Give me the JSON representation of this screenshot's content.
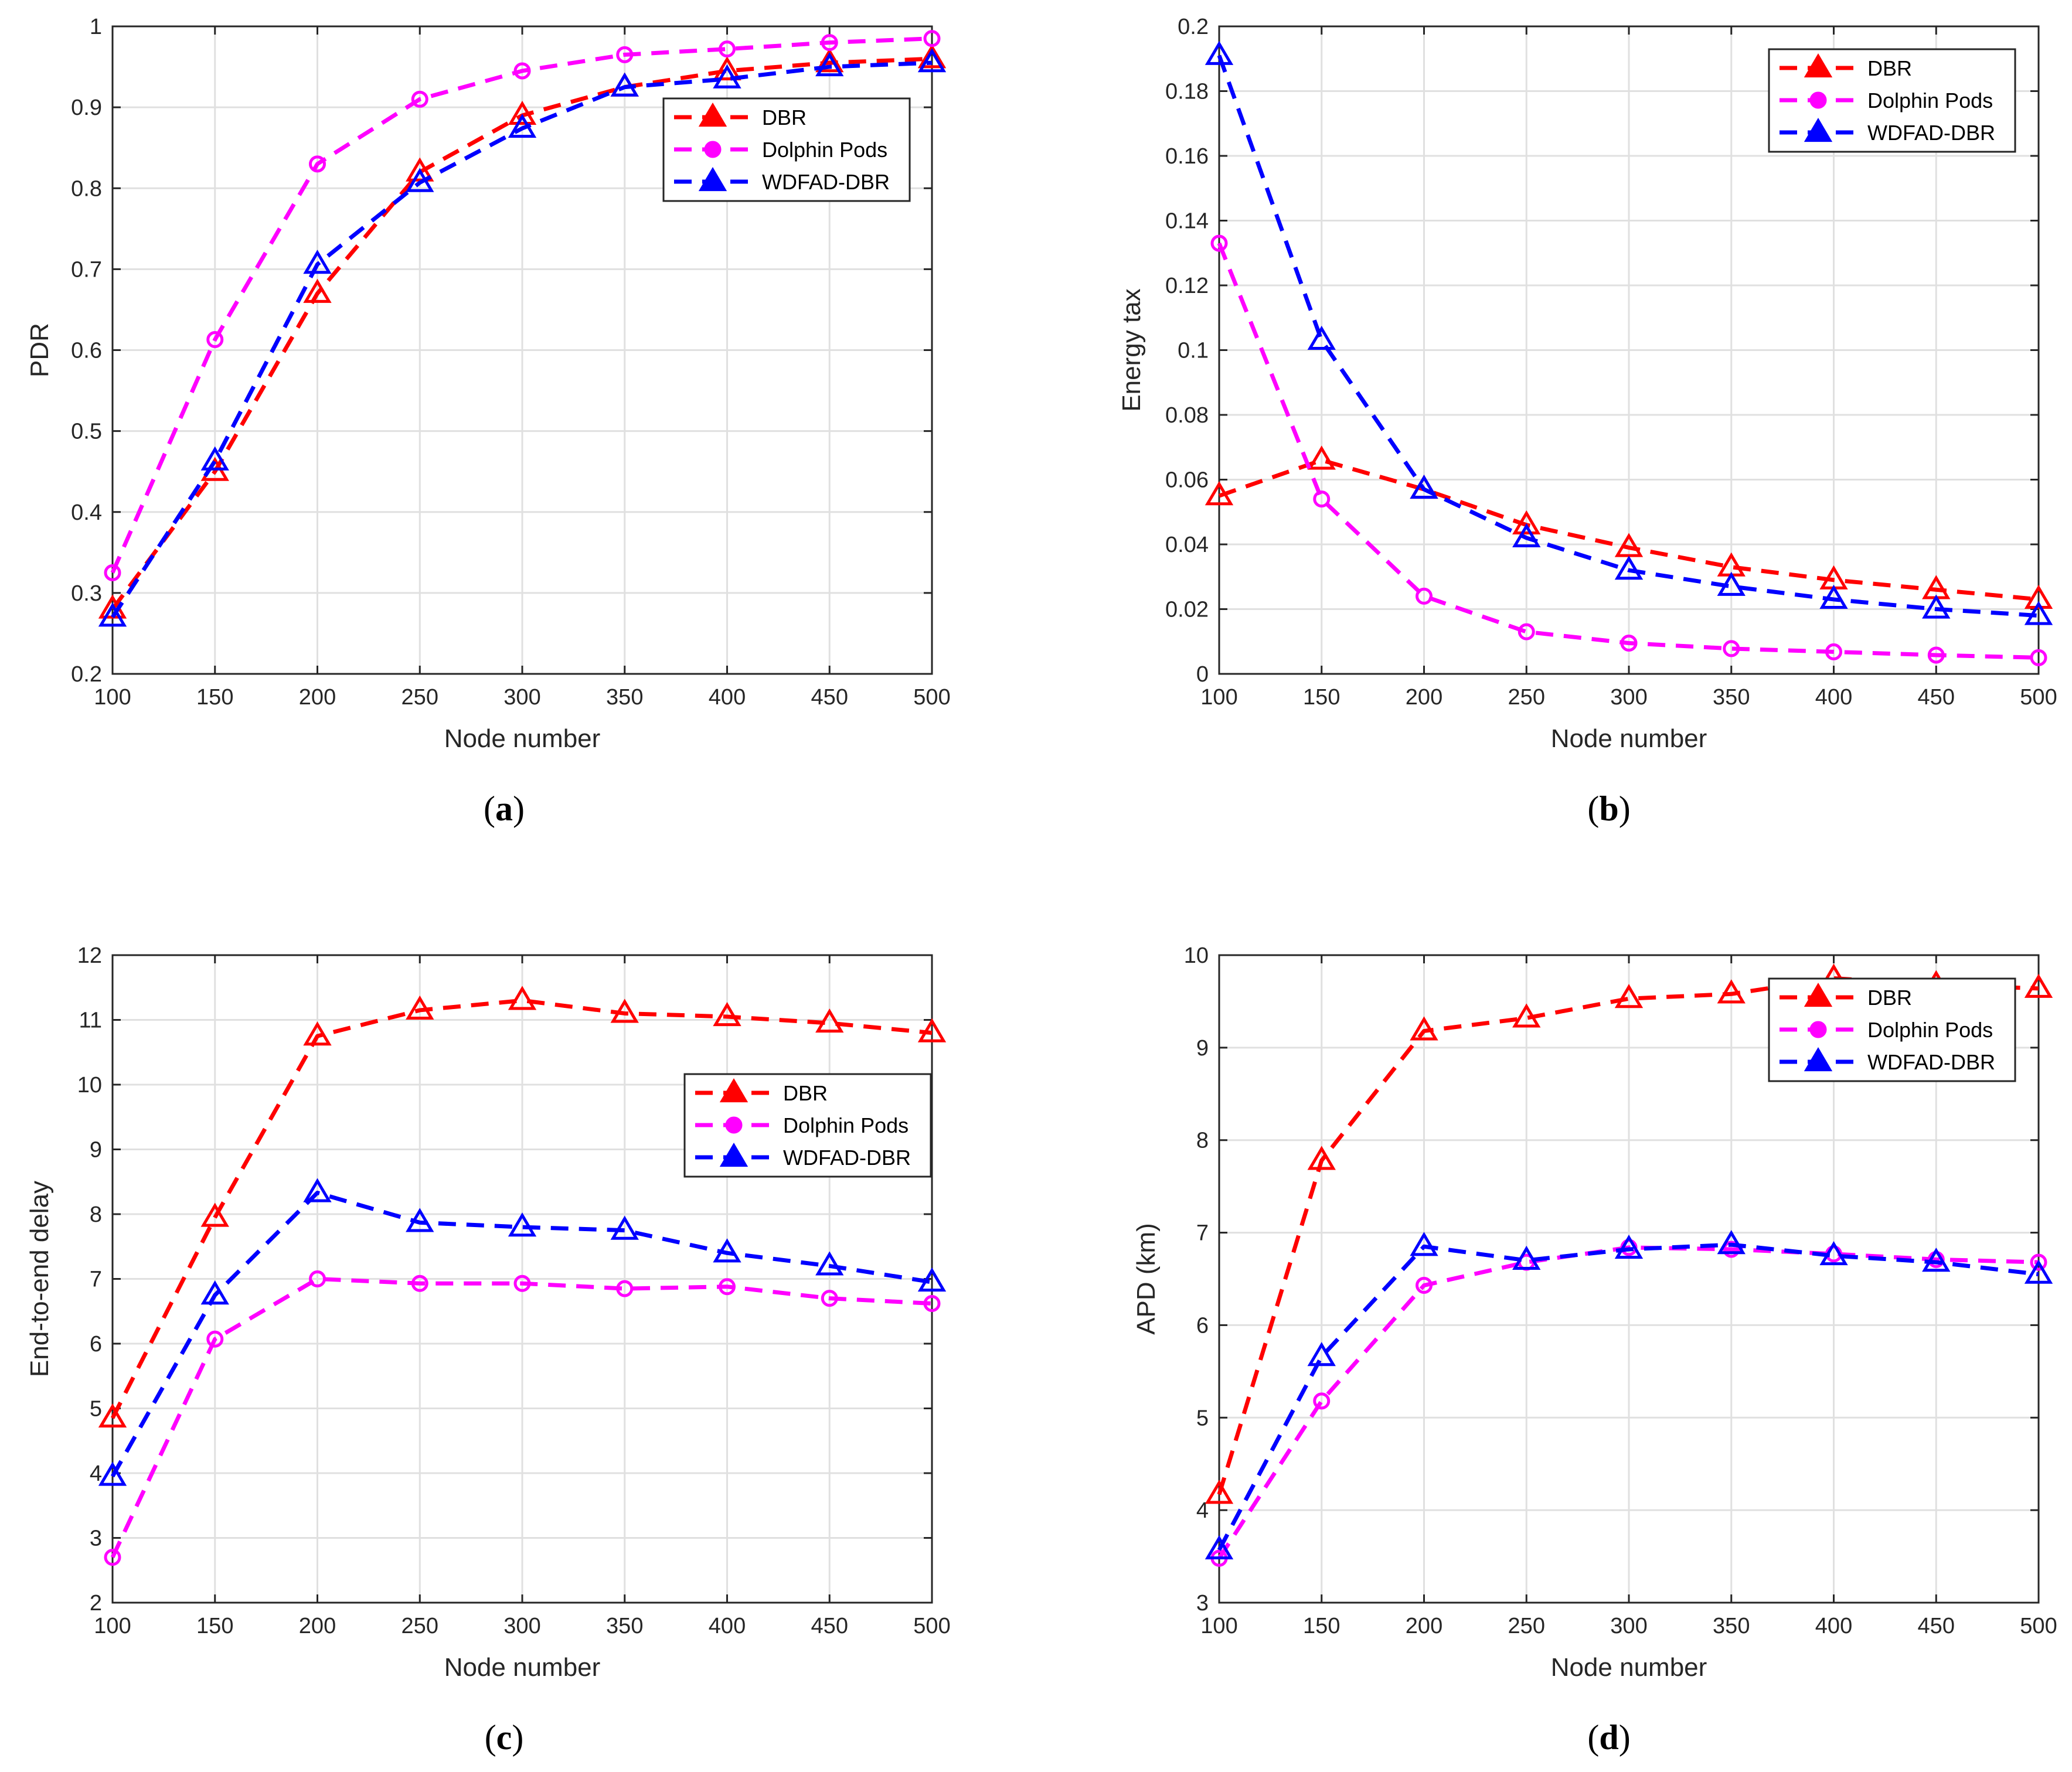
{
  "colors": {
    "DBR": "#ff0000",
    "Dolphin Pods": "#ff00ff",
    "WDFAD-DBR": "#0000ff",
    "grid": "#e0e0e0",
    "axis": "#262626"
  },
  "chart_data": [
    {
      "id": "a",
      "type": "line",
      "caption_letter": "a",
      "caption_open": "(",
      "caption_close": ")",
      "xlabel": "Node number",
      "ylabel": "PDR",
      "xlim": [
        100,
        500
      ],
      "ylim": [
        0.2,
        1
      ],
      "xticks": [
        100,
        150,
        200,
        250,
        300,
        350,
        400,
        450,
        500
      ],
      "yticks": [
        0.2,
        0.3,
        0.4,
        0.5,
        0.6,
        0.7,
        0.8,
        0.9,
        1
      ],
      "ytick_labels": [
        "0.2",
        "0.3",
        "0.4",
        "0.5",
        "0.6",
        "0.7",
        "0.8",
        "0.9",
        "1"
      ],
      "grid": true,
      "legend_position": "upper-right-inner",
      "x": [
        100,
        150,
        200,
        250,
        300,
        350,
        400,
        450,
        500
      ],
      "series": [
        {
          "name": "DBR",
          "marker": "triangle",
          "values": [
            0.28,
            0.45,
            0.67,
            0.82,
            0.89,
            0.925,
            0.945,
            0.955,
            0.96
          ]
        },
        {
          "name": "Dolphin Pods",
          "marker": "circle",
          "values": [
            0.325,
            0.613,
            0.83,
            0.91,
            0.945,
            0.965,
            0.972,
            0.98,
            0.985
          ]
        },
        {
          "name": "WDFAD-DBR",
          "marker": "triangle",
          "values": [
            0.27,
            0.463,
            0.706,
            0.807,
            0.874,
            0.925,
            0.935,
            0.95,
            0.955
          ]
        }
      ]
    },
    {
      "id": "b",
      "type": "line",
      "caption_letter": "b",
      "caption_open": "(",
      "caption_close": ")",
      "xlabel": "Node number",
      "ylabel": "Energy tax",
      "xlim": [
        100,
        500
      ],
      "ylim": [
        0,
        0.2
      ],
      "xticks": [
        100,
        150,
        200,
        250,
        300,
        350,
        400,
        450,
        500
      ],
      "yticks": [
        0,
        0.02,
        0.04,
        0.06,
        0.08,
        0.1,
        0.12,
        0.14,
        0.16,
        0.18,
        0.2
      ],
      "ytick_labels": [
        "0",
        "0.02",
        "0.04",
        "0.06",
        "0.08",
        "0.1",
        "0.12",
        "0.14",
        "0.16",
        "0.18",
        "0.2"
      ],
      "grid": true,
      "legend_position": "top-right",
      "x": [
        100,
        150,
        200,
        250,
        300,
        350,
        400,
        450,
        500
      ],
      "series": [
        {
          "name": "DBR",
          "marker": "triangle",
          "values": [
            0.055,
            0.066,
            0.057,
            0.046,
            0.039,
            0.033,
            0.029,
            0.026,
            0.023
          ]
        },
        {
          "name": "Dolphin Pods",
          "marker": "circle",
          "values": [
            0.133,
            0.054,
            0.024,
            0.013,
            0.0095,
            0.0078,
            0.0068,
            0.0058,
            0.005
          ]
        },
        {
          "name": "WDFAD-DBR",
          "marker": "triangle",
          "values": [
            0.191,
            0.103,
            0.057,
            0.042,
            0.032,
            0.027,
            0.023,
            0.02,
            0.018
          ]
        }
      ]
    },
    {
      "id": "c",
      "type": "line",
      "caption_letter": "c",
      "caption_open": "(",
      "caption_close": ")",
      "xlabel": "Node number",
      "ylabel": "End-to-end delay",
      "xlim": [
        100,
        500
      ],
      "ylim": [
        2,
        12
      ],
      "xticks": [
        100,
        150,
        200,
        250,
        300,
        350,
        400,
        450,
        500
      ],
      "yticks": [
        2,
        3,
        4,
        5,
        6,
        7,
        8,
        9,
        10,
        11,
        12
      ],
      "ytick_labels": [
        "2",
        "3",
        "4",
        "5",
        "6",
        "7",
        "8",
        "9",
        "10",
        "11",
        "12"
      ],
      "grid": true,
      "legend_position": "right-middle",
      "x": [
        100,
        150,
        200,
        250,
        300,
        350,
        400,
        450,
        500
      ],
      "series": [
        {
          "name": "DBR",
          "marker": "triangle",
          "values": [
            4.85,
            7.95,
            10.75,
            11.15,
            11.3,
            11.1,
            11.05,
            10.95,
            10.8
          ]
        },
        {
          "name": "Dolphin Pods",
          "marker": "circle",
          "values": [
            2.7,
            6.07,
            7.0,
            6.93,
            6.93,
            6.85,
            6.88,
            6.7,
            6.62
          ]
        },
        {
          "name": "WDFAD-DBR",
          "marker": "triangle",
          "values": [
            3.95,
            6.75,
            8.33,
            7.87,
            7.8,
            7.75,
            7.4,
            7.2,
            6.95
          ]
        }
      ]
    },
    {
      "id": "d",
      "type": "line",
      "caption_letter": "d",
      "caption_open": "(",
      "caption_close": ")",
      "xlabel": "Node number",
      "ylabel": "APD (km)",
      "xlim": [
        100,
        500
      ],
      "ylim": [
        3,
        10
      ],
      "xticks": [
        100,
        150,
        200,
        250,
        300,
        350,
        400,
        450,
        500
      ],
      "yticks": [
        3,
        4,
        5,
        6,
        7,
        8,
        9,
        10
      ],
      "ytick_labels": [
        "3",
        "4",
        "5",
        "6",
        "7",
        "8",
        "9",
        "10"
      ],
      "grid": true,
      "legend_position": "top-right",
      "x": [
        100,
        150,
        200,
        250,
        300,
        350,
        400,
        450,
        500
      ],
      "series": [
        {
          "name": "DBR",
          "marker": "triangle",
          "values": [
            4.17,
            7.78,
            9.18,
            9.32,
            9.53,
            9.58,
            9.75,
            9.68,
            9.64
          ]
        },
        {
          "name": "Dolphin Pods",
          "marker": "circle",
          "values": [
            3.48,
            5.18,
            6.43,
            6.68,
            6.84,
            6.82,
            6.77,
            6.71,
            6.68
          ]
        },
        {
          "name": "WDFAD-DBR",
          "marker": "triangle",
          "values": [
            3.57,
            5.66,
            6.85,
            6.7,
            6.82,
            6.87,
            6.75,
            6.68,
            6.55
          ]
        }
      ]
    }
  ]
}
